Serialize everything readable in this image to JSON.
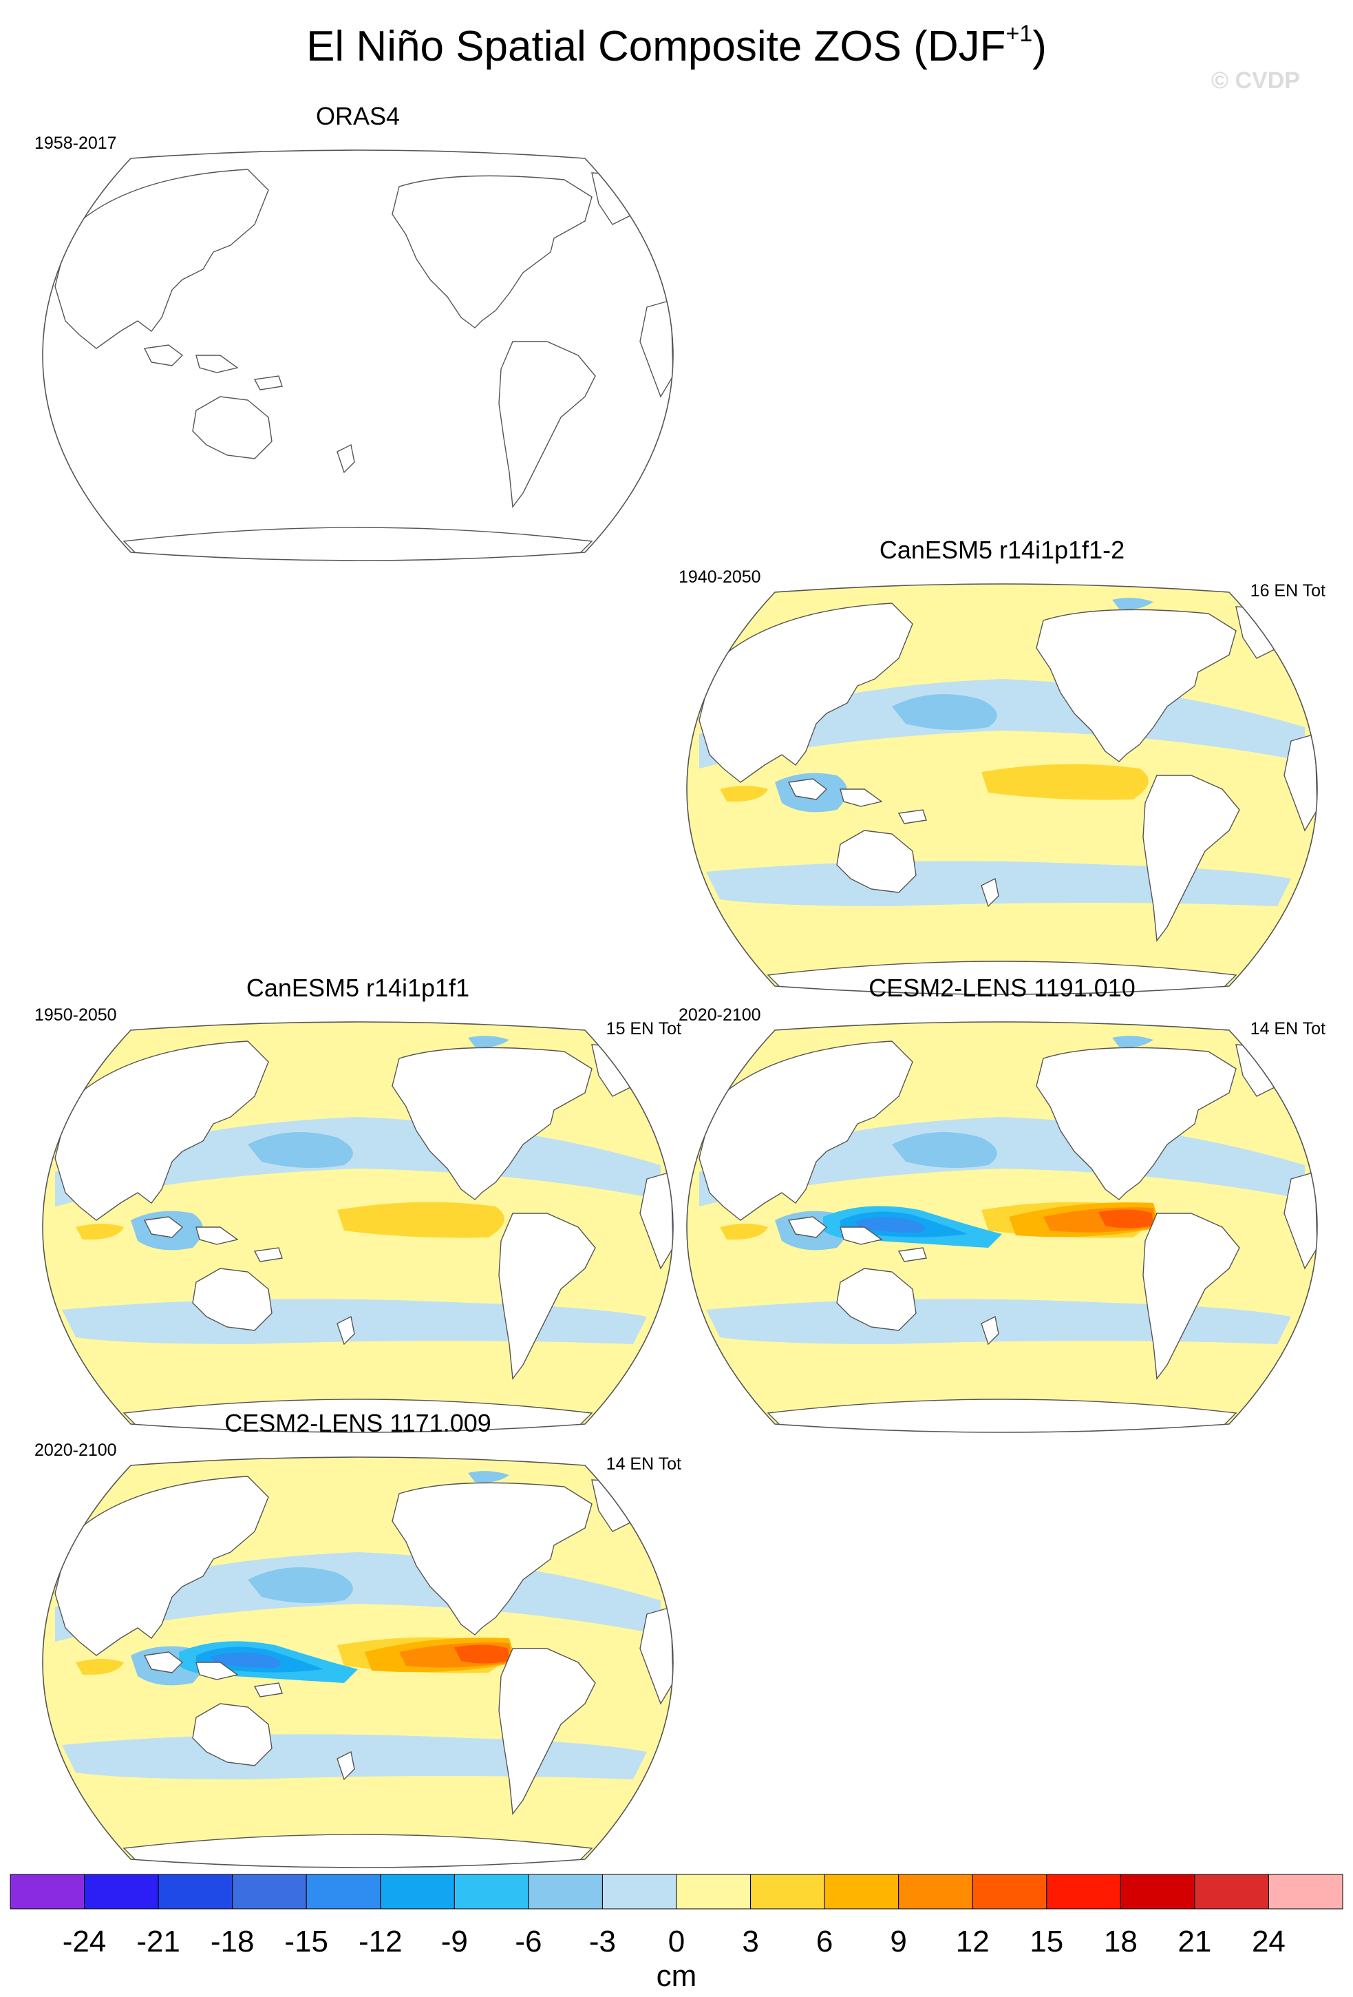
{
  "figure": {
    "title_main": "El Niño Spatial Composite ZOS (DJF",
    "title_sup": "+1",
    "title_close": ")",
    "watermark": "© CVDP"
  },
  "panels": [
    {
      "id": "oras4",
      "title": "ORAS4",
      "period": "1958-2017",
      "count": "",
      "has_data": false,
      "intensity": 0
    },
    {
      "id": "canesm5-2",
      "title": "CanESM5 r14i1p1f1-2",
      "period": "1940-2050",
      "count": "16 EN Tot",
      "has_data": true,
      "intensity": 1
    },
    {
      "id": "canesm5",
      "title": "CanESM5 r14i1p1f1",
      "period": "1950-2050",
      "count": "15 EN Tot",
      "has_data": true,
      "intensity": 1
    },
    {
      "id": "cesm2-1191",
      "title": "CESM2-LENS 1191.010",
      "period": "2020-2100",
      "count": "14 EN Tot",
      "has_data": true,
      "intensity": 2
    },
    {
      "id": "cesm2-1171",
      "title": "CESM2-LENS 1171.009",
      "period": "2020-2100",
      "count": "14 EN Tot",
      "has_data": true,
      "intensity": 2
    }
  ],
  "colorbar": {
    "units": "cm",
    "levels": [
      -24,
      -21,
      -18,
      -15,
      -12,
      -9,
      -6,
      -3,
      0,
      3,
      6,
      9,
      12,
      15,
      18,
      21,
      24
    ],
    "labels": [
      "-24",
      "-21",
      "-18",
      "-15",
      "-12",
      "-9",
      "-6",
      "-3",
      "0",
      "3",
      "6",
      "9",
      "12",
      "15",
      "18",
      "21",
      "24"
    ],
    "colors": [
      "#8a2be2",
      "#2b1ff5",
      "#1f4ae8",
      "#3b6ee0",
      "#2f8cf0",
      "#12a6f2",
      "#2fc0f5",
      "#86c8ee",
      "#bfe0f2",
      "#fff8a0",
      "#ffd733",
      "#ffb400",
      "#ff8c00",
      "#ff5a00",
      "#ff1a00",
      "#d40000",
      "#dc2b2b",
      "#ffb0b0"
    ]
  }
}
